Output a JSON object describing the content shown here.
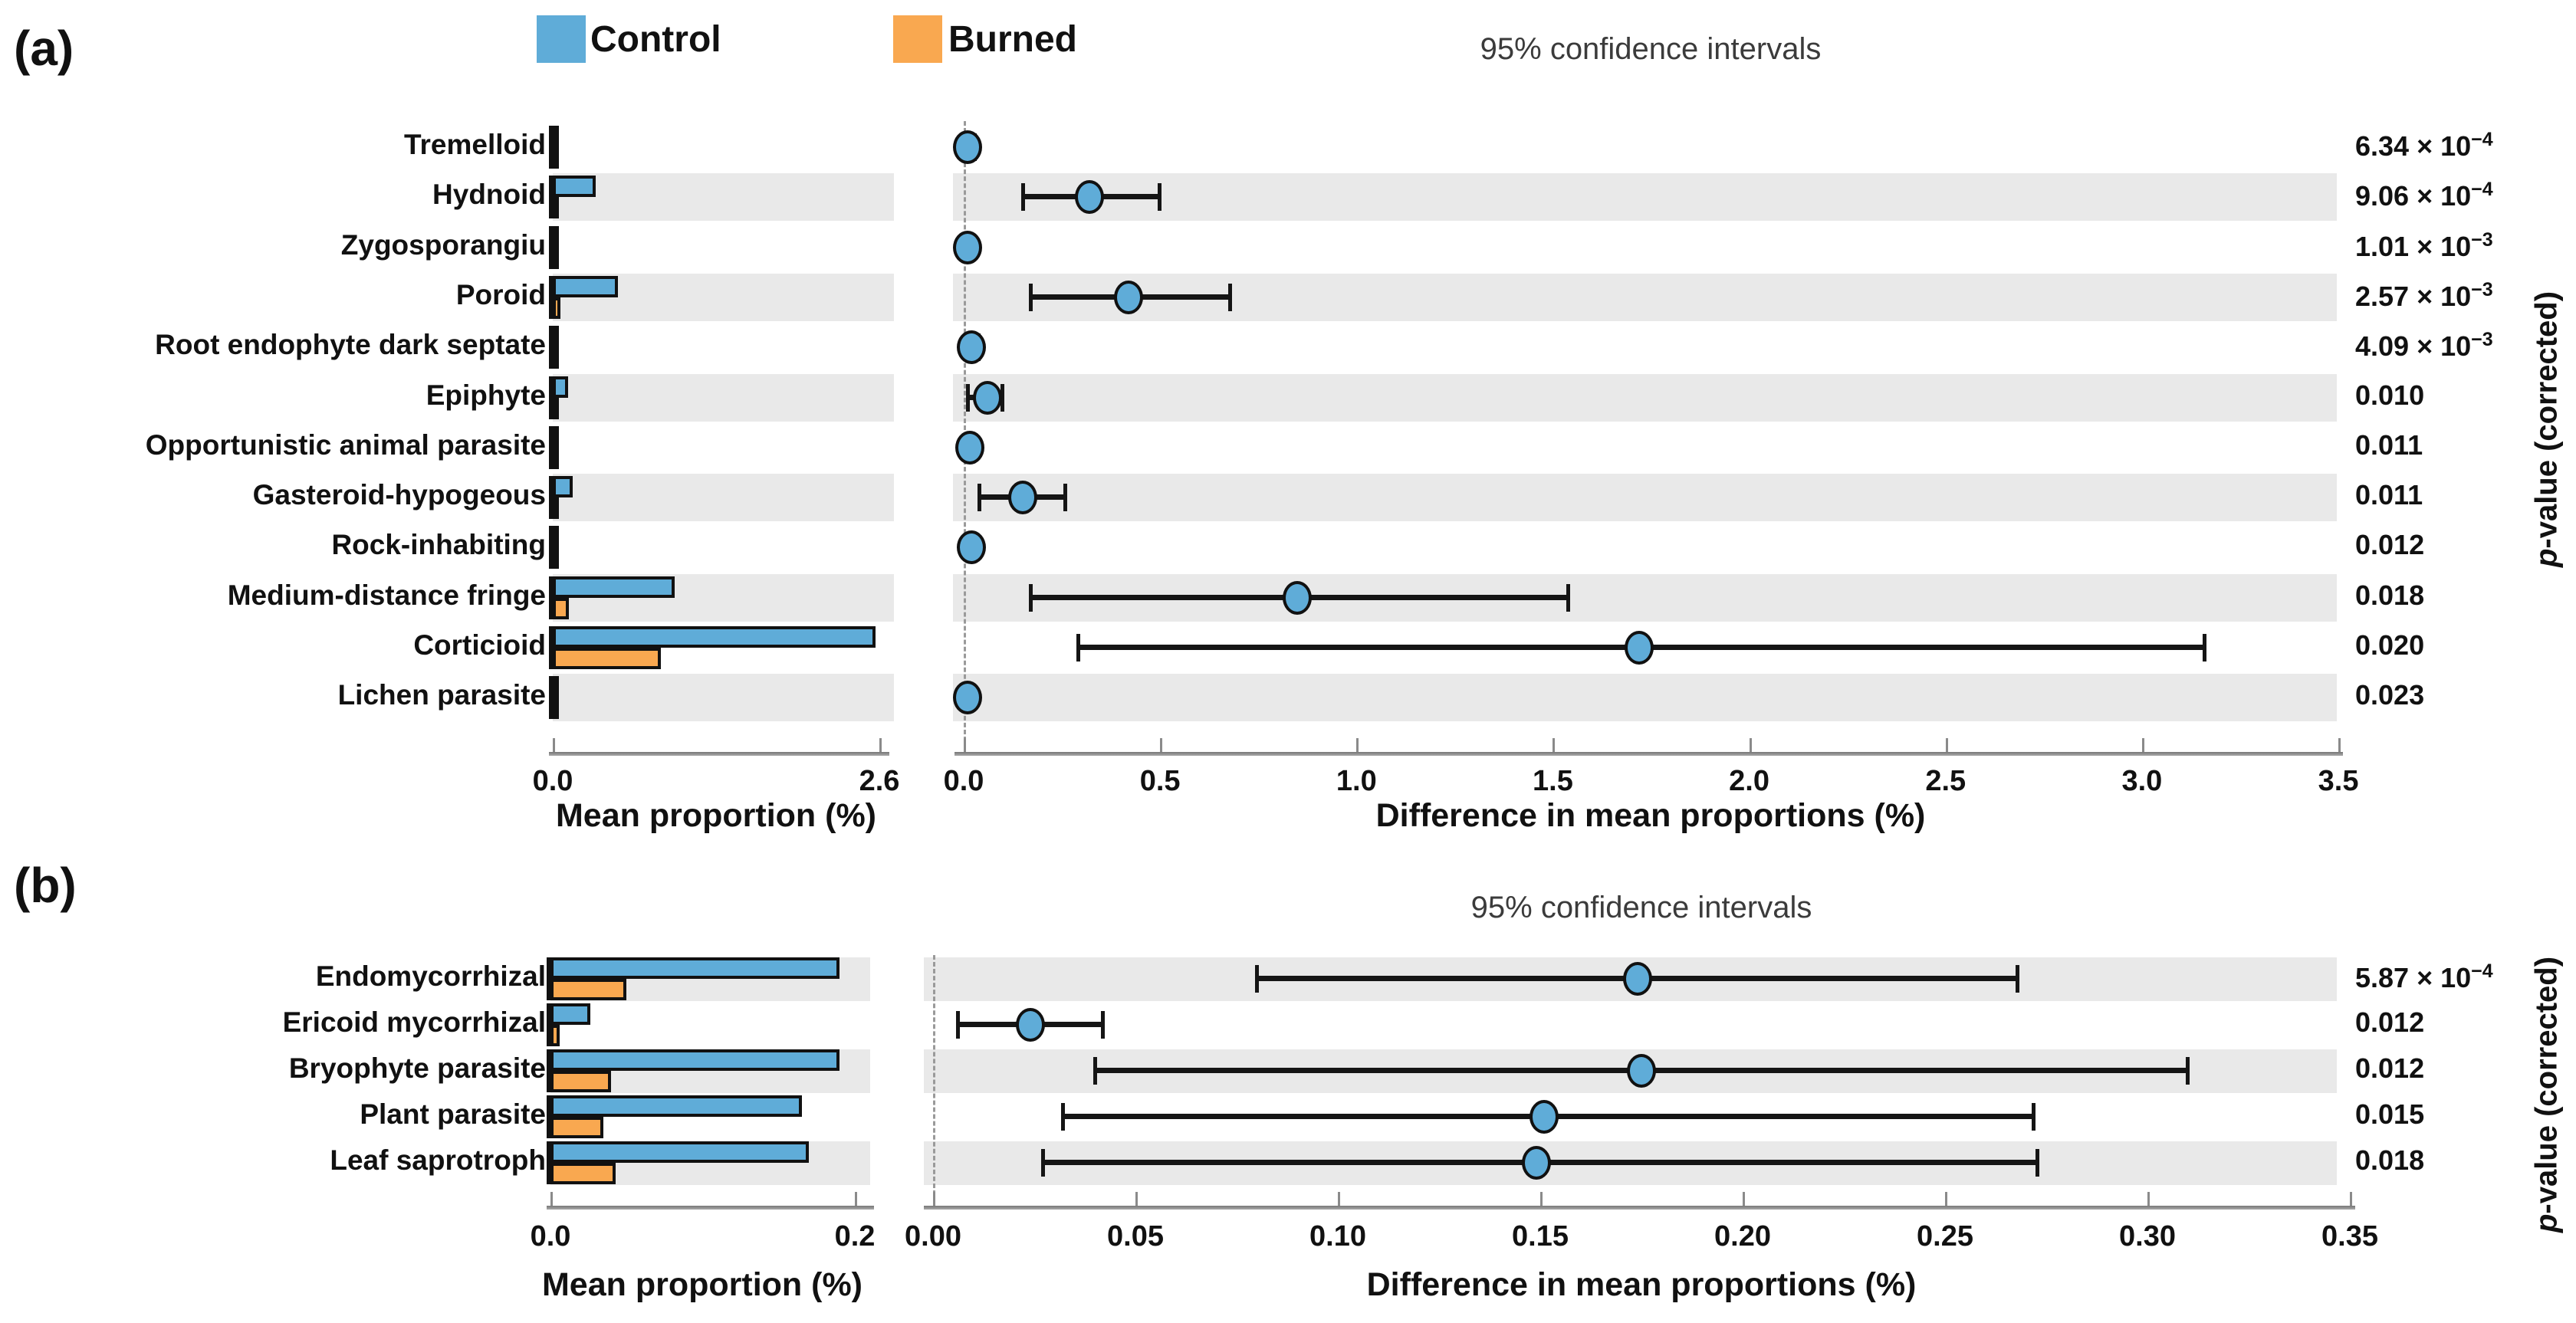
{
  "legend": {
    "control_label": "Control",
    "burned_label": "Burned"
  },
  "colors": {
    "control": "#5FACD8",
    "burned": "#F9A850",
    "stripe": "#E9E9E9",
    "outline": "#111111",
    "axis": "#8A8A8A",
    "ci_title_text": "#3B3B3B"
  },
  "chart_data": [
    {
      "type": "bar",
      "panel_label": "(a)",
      "ci_title": "95% confidence intervals",
      "pvalue_axis_label": "p-value (corrected)",
      "bar_axis": {
        "title": "Mean proportion (%)",
        "min": 0,
        "max": 2.6,
        "ticks": [
          "0.0",
          "2.6"
        ]
      },
      "diff_axis": {
        "title": "Difference in mean proportions (%)",
        "min": 0,
        "max": 3.5,
        "ticks": [
          "0.0",
          "0.5",
          "1.0",
          "1.5",
          "2.0",
          "2.5",
          "3.0",
          "3.5"
        ]
      },
      "categories": [
        "Tremelloid",
        "Hydnoid",
        "Zygosporangiu",
        "Poroid",
        "Root endophyte dark septate",
        "Epiphyte",
        "Opportunistic animal parasite",
        "Gasteroid-hypogeous",
        "Rock-inhabiting",
        "Medium-distance fringe",
        "Corticioid",
        "Lichen parasite"
      ],
      "series": [
        {
          "name": "Control",
          "values": [
            0.01,
            0.34,
            0.01,
            0.52,
            0.015,
            0.12,
            0.01,
            0.16,
            0.015,
            0.97,
            2.57,
            0.01
          ]
        },
        {
          "name": "Burned",
          "values": [
            0.005,
            0.01,
            0.003,
            0.06,
            0.005,
            0.015,
            0.003,
            0.03,
            0.005,
            0.13,
            0.86,
            0.003
          ]
        }
      ],
      "difference": {
        "name": "Difference in mean proportions (%)",
        "values": [
          0.01,
          0.32,
          0.01,
          0.42,
          0.02,
          0.06,
          0.015,
          0.15,
          0.02,
          0.85,
          1.72,
          0.01
        ],
        "ci_low": [
          -0.005,
          0.15,
          0.0,
          0.17,
          0.005,
          0.01,
          0.0,
          0.04,
          0.005,
          0.17,
          0.29,
          0.0
        ],
        "ci_high": [
          0.03,
          0.5,
          0.025,
          0.68,
          0.04,
          0.1,
          0.03,
          0.26,
          0.035,
          1.54,
          3.16,
          0.025
        ]
      },
      "p_values": [
        "6.34 × 10^−4",
        "9.06 × 10^−4",
        "1.01 × 10^−3",
        "2.57 × 10^−3",
        "4.09 × 10^−3",
        "0.010",
        "0.011",
        "0.011",
        "0.012",
        "0.018",
        "0.020",
        "0.023"
      ],
      "shaded_rows": [
        1,
        3,
        5,
        7,
        9,
        11
      ]
    },
    {
      "type": "bar",
      "panel_label": "(b)",
      "ci_title": "95% confidence intervals",
      "pvalue_axis_label": "p-value (corrected)",
      "bar_axis": {
        "title": "Mean proportion (%)",
        "min": 0,
        "max": 0.2,
        "ticks": [
          "0.0",
          "0.2"
        ]
      },
      "diff_axis": {
        "title": "Difference in mean proportions (%)",
        "min": 0,
        "max": 0.35,
        "ticks": [
          "0.00",
          "0.05",
          "0.10",
          "0.15",
          "0.20",
          "0.25",
          "0.30",
          "0.35"
        ]
      },
      "categories": [
        "Endomycorrhizal",
        "Ericoid mycorrhizal",
        "Bryophyte parasite",
        "Plant parasite",
        "Leaf saprotroph"
      ],
      "series": [
        {
          "name": "Control",
          "values": [
            0.19,
            0.026,
            0.19,
            0.165,
            0.17
          ]
        },
        {
          "name": "Burned",
          "values": [
            0.05,
            0.006,
            0.04,
            0.035,
            0.043
          ]
        }
      ],
      "difference": {
        "name": "Difference in mean proportions (%)",
        "values": [
          0.174,
          0.024,
          0.175,
          0.151,
          0.149
        ],
        "ci_low": [
          0.08,
          0.006,
          0.04,
          0.032,
          0.027
        ],
        "ci_high": [
          0.268,
          0.042,
          0.31,
          0.272,
          0.273
        ]
      },
      "p_values": [
        "5.87 × 10^−4",
        "0.012",
        "0.012",
        "0.015",
        "0.018"
      ],
      "shaded_rows": [
        0,
        2,
        4
      ]
    }
  ]
}
